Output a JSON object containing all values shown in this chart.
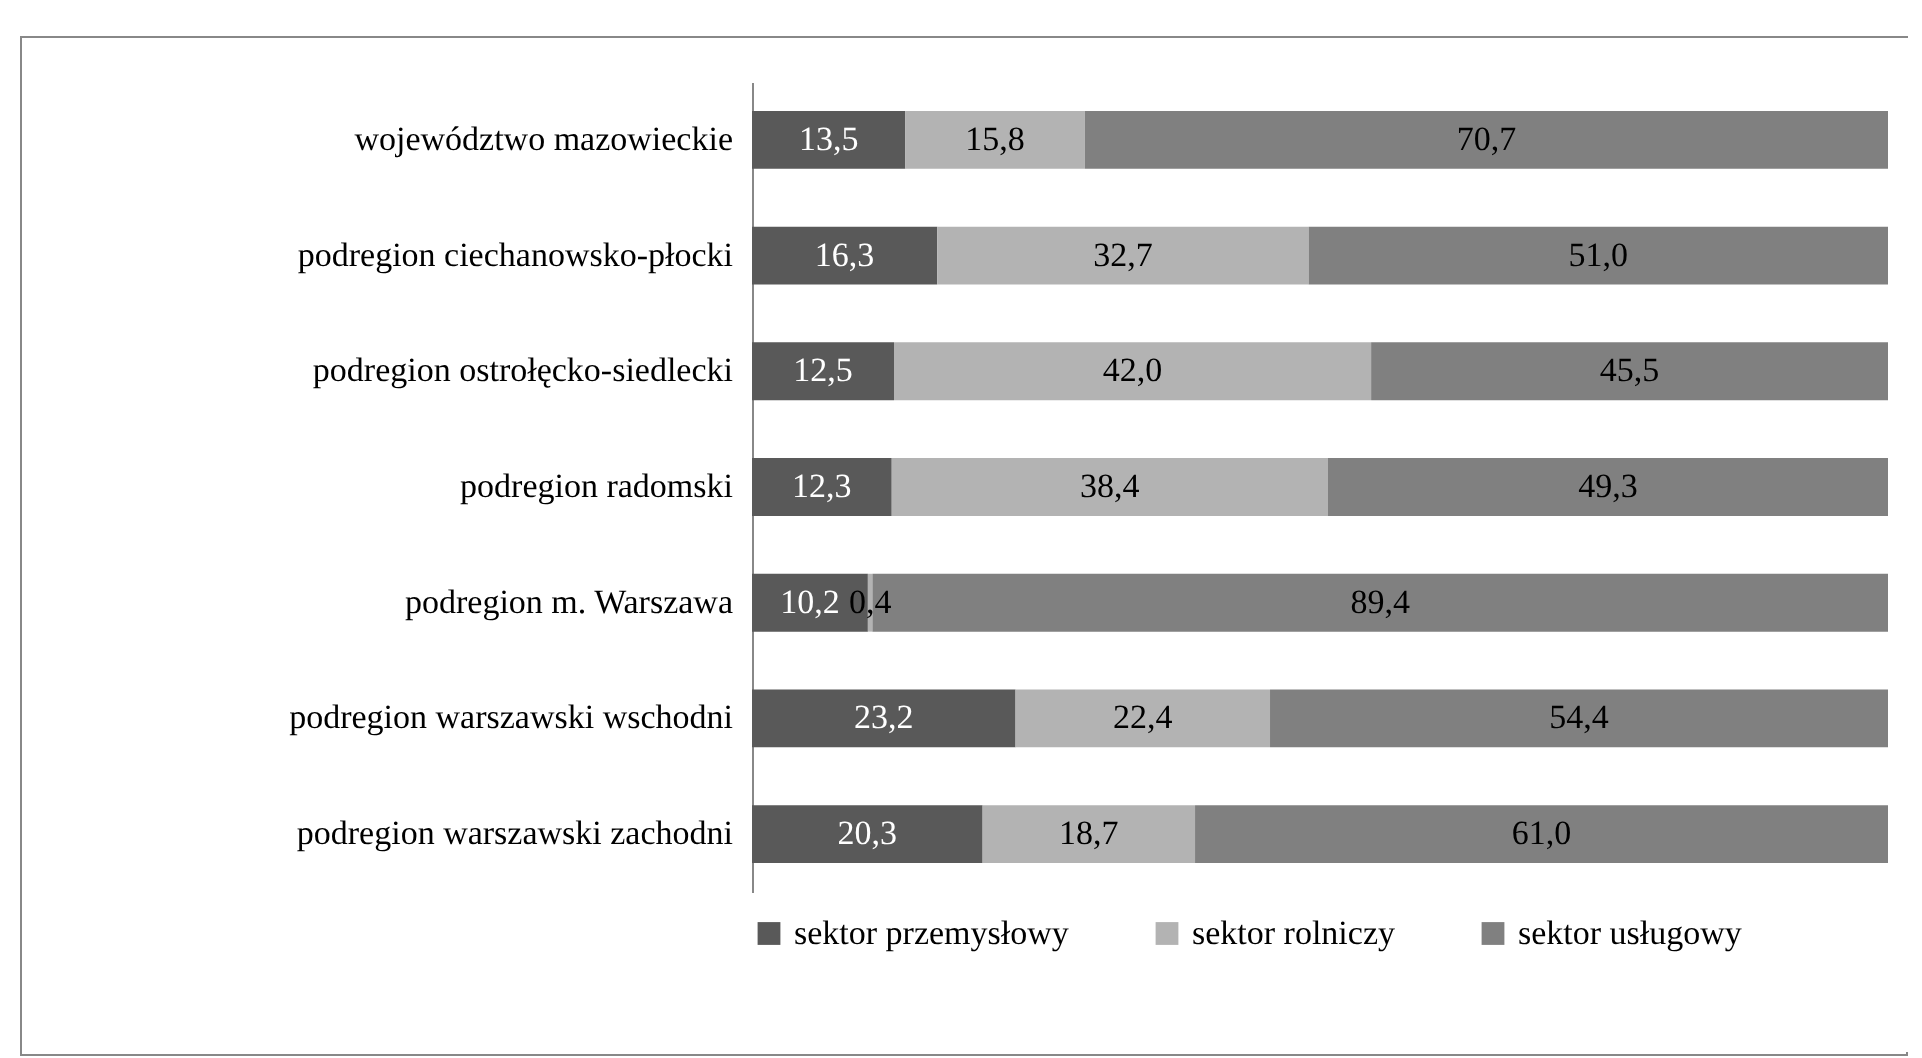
{
  "chart_data": {
    "type": "bar",
    "orientation": "horizontal",
    "stacked": true,
    "categories": [
      "województwo mazowieckie",
      "podregion ciechanowsko-płocki",
      "podregion ostrołęcko-siedlecki",
      "podregion radomski",
      "podregion m. Warszawa",
      "podregion warszawski wschodni",
      "podregion warszawski zachodni"
    ],
    "series": [
      {
        "name": "sektor przemysłowy",
        "color": "#595959",
        "values": [
          13.5,
          16.3,
          12.5,
          12.3,
          10.2,
          23.2,
          20.3
        ],
        "value_labels": [
          "13,5",
          "16,3",
          "12,5",
          "12,3",
          "10,2",
          "23,2",
          "20,3"
        ]
      },
      {
        "name": "sektor rolniczy",
        "color": "#b3b3b3",
        "values": [
          15.8,
          32.7,
          42.0,
          38.4,
          0.4,
          22.4,
          18.7
        ],
        "value_labels": [
          "15,8",
          "32,7",
          "42,0",
          "38,4",
          "0,4",
          "22,4",
          "18,7"
        ]
      },
      {
        "name": "sektor usługowy",
        "color": "#808080",
        "values": [
          70.7,
          51.0,
          45.5,
          49.3,
          89.4,
          54.4,
          61.0
        ],
        "value_labels": [
          "70,7",
          "51,0",
          "45,5",
          "49,3",
          "89,4",
          "54,4",
          "61,0"
        ]
      }
    ],
    "xlim": [
      0,
      100
    ],
    "tick_labels": "y",
    "grid": false,
    "legend": "bottom"
  }
}
